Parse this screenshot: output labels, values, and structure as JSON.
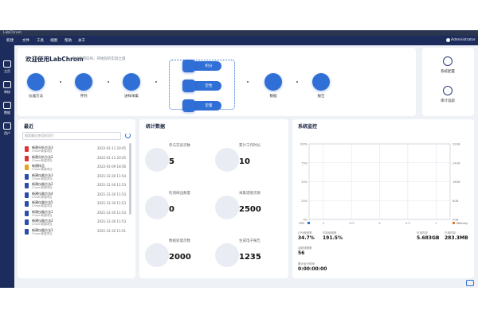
{
  "window": {
    "title": "LabChrom"
  },
  "menu": {
    "items": [
      "新建",
      "文件",
      "工具",
      "视图",
      "帮助",
      "关于"
    ],
    "user": "Administrator"
  },
  "sidebar": [
    "主页",
    "审核",
    "数据",
    "用户"
  ],
  "welcome": {
    "title": "欢迎使用LabChrom",
    "subtitle": "要按使用向导，开始您的实验之旅",
    "steps": [
      "仪器方法",
      "序列",
      "进样采集"
    ],
    "process": [
      "积分",
      "定性",
      "定量"
    ],
    "outputs": [
      "数据",
      "报告"
    ]
  },
  "tools": [
    "系统配置",
    "审计追踪"
  ],
  "recent": {
    "title": "最近",
    "search": "搜索最近使用的项目",
    "items": [
      {
        "name": "新建分析方法3",
        "project": "Chrom新建项目",
        "time": "2022-01-11 20:45"
      },
      {
        "name": "新建分析方法2",
        "project": "Chrom新建项目",
        "time": "2022-01-11 20:45"
      },
      {
        "name": "新建样品",
        "project": "Chrom新建项目",
        "time": "2022-01-09 18:56"
      },
      {
        "name": "新建仪器方法3",
        "project": "Chrom新建项目",
        "time": "2021-12-30 11:54"
      },
      {
        "name": "新建仪器方法2",
        "project": "Chrom新建项目",
        "time": "2021-12-30 11:53"
      },
      {
        "name": "新建仪器方法4",
        "project": "Chrom新建项目",
        "time": "2021-12-30 11:53"
      },
      {
        "name": "新建仪器方法5",
        "project": "Chrom新建项目",
        "time": "2021-12-30 11:53"
      },
      {
        "name": "新建仪器方法1",
        "project": "Chrom新建项目",
        "time": "2021-12-30 11:53"
      },
      {
        "name": "新建仪器方法2",
        "project": "Chrom新建项目",
        "time": "2021-12-30 11:53"
      },
      {
        "name": "新建仪器方法3",
        "project": "Chrom新建项目",
        "time": "2021-12-30 11:51"
      }
    ]
  },
  "stats": {
    "title": "统计数据",
    "items": [
      {
        "label": "参与实验次数",
        "value": "5"
      },
      {
        "label": "累计工作时长",
        "value": "10"
      },
      {
        "label": "检测样品数量",
        "value": "0"
      },
      {
        "label": "采集谱图次数",
        "value": "2500"
      },
      {
        "label": "数据处理次数",
        "value": "2000"
      },
      {
        "label": "生成电子报告",
        "value": "1235"
      }
    ]
  },
  "monitor": {
    "title": "系统监控",
    "yticks": [
      "100%",
      "75%",
      "50%",
      "25%",
      "0%"
    ],
    "y2ticks": [
      "32GB",
      "24GB",
      "16GB",
      "8GB",
      "0GB"
    ],
    "xticks": [
      "-1",
      "-0.5",
      "0",
      "0.5",
      "1"
    ],
    "legend": [
      "CPU",
      "Memory"
    ],
    "metrics": [
      {
        "label": "CPU使用率",
        "value": "34.7%"
      },
      {
        "label": "内存使用率",
        "value": "191.5%"
      },
      {
        "label": "可用内存",
        "value": "5.683GB"
      },
      {
        "label": "已用内存",
        "value": "283.3MB"
      },
      {
        "label": "活跃线程数",
        "value": "56"
      },
      {
        "label": "累计运行时间",
        "value": "0:00:00:00"
      }
    ]
  }
}
